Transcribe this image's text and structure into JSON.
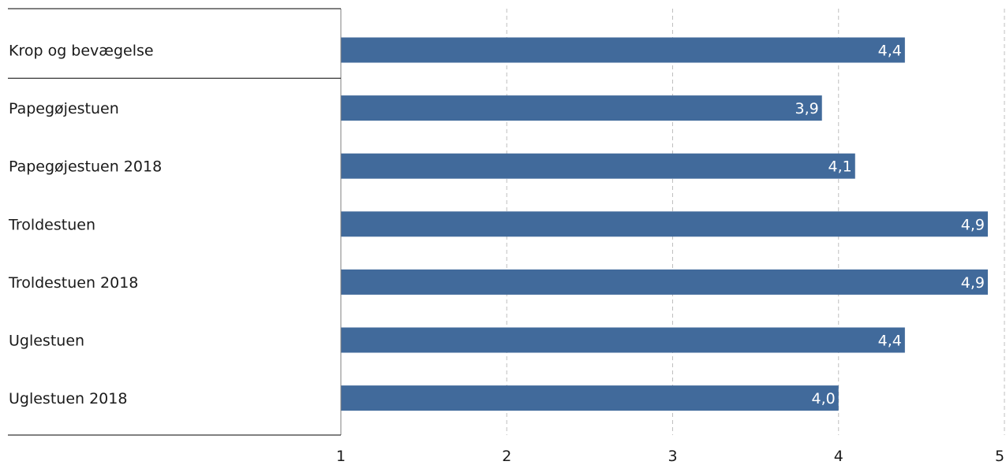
{
  "chart_data": {
    "type": "bar",
    "orientation": "horizontal",
    "categories": [
      "Krop og bevægelse",
      "Papegøjestuen",
      "Papegøjestuen 2018",
      "Troldestuen",
      "Troldestuen 2018",
      "Uglestuen",
      "Uglestuen 2018"
    ],
    "values": [
      4.4,
      3.9,
      4.1,
      4.9,
      4.9,
      4.4,
      4.0
    ],
    "value_labels": [
      "4,4",
      "3,9",
      "4,1",
      "4,9",
      "4,9",
      "4,4",
      "4,0"
    ],
    "xlim": [
      1,
      5
    ],
    "xticks": [
      1,
      2,
      3,
      4,
      5
    ],
    "xtick_labels": [
      "1",
      "2",
      "3",
      "4",
      "5"
    ],
    "title": "",
    "xlabel": "",
    "ylabel": "",
    "grid": "vertical dashed",
    "legend": "none",
    "colors": {
      "bar": "#416a9b",
      "grid": "#bfbfbf",
      "axis": "#7f7f7f",
      "rule": "#000000"
    }
  }
}
